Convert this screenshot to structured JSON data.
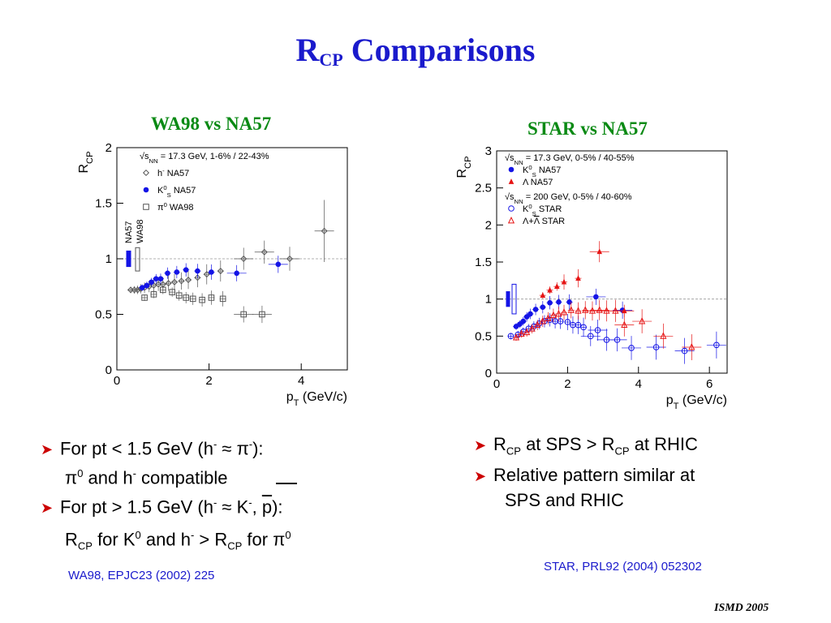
{
  "slide": {
    "title_main": "R",
    "title_sub": "CP",
    "title_rest": " Comparisons",
    "footer": "ISMD 2005"
  },
  "left_panel": {
    "title": "WA98 vs NA57",
    "reference": "WA98, EPJC23 (2002) 225"
  },
  "right_panel": {
    "title": "STAR vs NA57",
    "reference": "STAR, PRL92 (2004) 052302"
  },
  "bullets_left": {
    "b1": "For pt < 1.5 GeV (h",
    "b1_sup1": "-",
    "b1_approx": " ≈ π",
    "b1_sup2": "-",
    "b1_end": "):",
    "b1_line2_a": "π",
    "b1_line2_sup0": "0",
    "b1_line2_b": " and h",
    "b1_line2_sup1": "-",
    "b1_line2_c": " compatible",
    "b2": "For pt > 1.5 GeV (h",
    "b2_sup1": "-",
    "b2_approx": " ≈ K",
    "b2_sup2": "-",
    "b2_comma": ", ",
    "b2_pbar": "p",
    "b2_end": "):",
    "b2_line2_a": "R",
    "b2_line2_sub1": "CP",
    "b2_line2_b": " for K",
    "b2_line2_sup0": "0",
    "b2_line2_c": " and h",
    "b2_line2_sup1": "-",
    "b2_line2_d": " >  R",
    "b2_line2_sub2": "CP",
    "b2_line2_e": " for π",
    "b2_line2_sup2": "0"
  },
  "bullets_right": {
    "b1_a": "R",
    "b1_sub1": "CP",
    "b1_b": " at SPS >  R",
    "b1_sub2": "CP",
    "b1_c": " at RHIC",
    "b2_line1": "Relative pattern similar at",
    "b2_line2": "SPS and RHIC"
  },
  "colors": {
    "title": "#1a1acc",
    "panel_title": "#0a8a14",
    "arrow": "#cc0000",
    "blue": "#1414e6",
    "red": "#e61414",
    "grey": "#555555"
  },
  "chart_data": [
    {
      "type": "scatter",
      "ylabel": "R",
      "ylabel_sub": "CP",
      "xlabel": "p",
      "xlabel_sub": "T",
      "xlabel_unit": " (GeV/c)",
      "xlim": [
        0,
        5
      ],
      "ylim": [
        0,
        2
      ],
      "xticks": [
        0,
        2,
        4
      ],
      "yticks": [
        0,
        0.5,
        1,
        1.5,
        2
      ],
      "ytick_labels": [
        "0",
        "0.5",
        "1",
        "1.5",
        "2"
      ],
      "reference_line": 1,
      "legend_header": "√s",
      "legend_header_sub": "NN",
      "legend_header_rest": " = 17.3 GeV, 1-6% / 22-43%",
      "side_labels": [
        "NA57",
        "WA98"
      ],
      "systematic_bars": [
        {
          "label": "NA57",
          "low": 0.93,
          "high": 1.07,
          "color": "#1414e6",
          "filled": true
        },
        {
          "label": "WA98",
          "low": 0.89,
          "high": 1.1,
          "color": "#555555",
          "filled": false
        }
      ],
      "series": [
        {
          "name": "h",
          "name_sup": "-",
          "name_suffix": "  NA57",
          "marker": "open-diamond",
          "color": "#555555",
          "x": [
            0.3,
            0.38,
            0.45,
            0.52,
            0.6,
            0.7,
            0.8,
            0.9,
            1.0,
            1.12,
            1.25,
            1.4,
            1.55,
            1.75,
            1.95,
            2.25,
            2.75,
            3.2,
            3.75,
            4.5
          ],
          "y": [
            0.72,
            0.72,
            0.72,
            0.73,
            0.74,
            0.75,
            0.76,
            0.77,
            0.77,
            0.78,
            0.79,
            0.8,
            0.81,
            0.83,
            0.86,
            0.89,
            1.0,
            1.06,
            1.0,
            1.25
          ]
        },
        {
          "name": "K",
          "name_sup": "0",
          "name_sub": "S",
          "name_suffix": "  NA57",
          "marker": "filled-circle",
          "color": "#1414e6",
          "x": [
            0.55,
            0.65,
            0.75,
            0.85,
            0.95,
            1.1,
            1.3,
            1.5,
            1.75,
            2.05,
            2.6,
            3.5
          ],
          "y": [
            0.74,
            0.76,
            0.79,
            0.82,
            0.82,
            0.87,
            0.88,
            0.9,
            0.89,
            0.88,
            0.87,
            0.95
          ]
        },
        {
          "name": "π",
          "name_sup": "0",
          "name_suffix": "  WA98",
          "marker": "open-square",
          "color": "#555555",
          "x": [
            0.6,
            0.8,
            1.0,
            1.2,
            1.35,
            1.5,
            1.65,
            1.85,
            2.05,
            2.3,
            2.75,
            3.15
          ],
          "y": [
            0.65,
            0.68,
            0.72,
            0.7,
            0.67,
            0.65,
            0.64,
            0.63,
            0.65,
            0.64,
            0.5,
            0.5
          ]
        }
      ]
    },
    {
      "type": "scatter",
      "ylabel": "R",
      "ylabel_sub": "CP",
      "xlabel": "p",
      "xlabel_sub": "T",
      "xlabel_unit": " (GeV/c)",
      "xlim": [
        0,
        6.5
      ],
      "ylim": [
        0,
        3
      ],
      "xticks": [
        0,
        2,
        4,
        6
      ],
      "yticks": [
        0,
        0.5,
        1,
        1.5,
        2,
        2.5,
        3
      ],
      "ytick_labels": [
        "0",
        "0.5",
        "1",
        "1.5",
        "2",
        "2.5",
        "3"
      ],
      "reference_line": 1,
      "legend_header": "√s",
      "legend_header_sub": "NN",
      "legend_header_rest": " = 17.3 GeV, 0-5% / 40-55%",
      "legend_header2": "√s",
      "legend_header2_sub": "NN",
      "legend_header2_rest": " = 200 GeV, 0-5% / 40-60%",
      "systematic_bars": [
        {
          "label": "NA57",
          "low": 0.9,
          "high": 1.1,
          "color": "#1414e6",
          "filled": true
        },
        {
          "label": "STAR",
          "low": 0.8,
          "high": 1.2,
          "color": "#1414e6",
          "filled": false
        }
      ],
      "series": [
        {
          "name": "K",
          "name_sup": "0",
          "name_sub": "S",
          "name_suffix": "  NA57",
          "marker": "filled-circle",
          "color": "#1414e6",
          "x": [
            0.55,
            0.65,
            0.75,
            0.85,
            0.95,
            1.1,
            1.3,
            1.5,
            1.75,
            2.05,
            2.8,
            3.55
          ],
          "y": [
            0.63,
            0.66,
            0.7,
            0.76,
            0.8,
            0.86,
            0.89,
            0.95,
            0.96,
            0.96,
            1.03,
            0.85
          ]
        },
        {
          "name": "Λ",
          "name_suffix": "  NA57",
          "marker": "filled-triangle",
          "color": "#e61414",
          "x": [
            1.3,
            1.5,
            1.7,
            1.9,
            2.3,
            2.9,
            3.6
          ],
          "y": [
            1.05,
            1.12,
            1.17,
            1.23,
            1.28,
            1.64,
            0.84
          ]
        },
        {
          "name": "K",
          "name_sup": "0",
          "name_sub": "S",
          "name_suffix": "  STAR",
          "marker": "open-circle",
          "color": "#1414e6",
          "x": [
            0.4,
            0.6,
            0.75,
            0.9,
            1.05,
            1.2,
            1.35,
            1.5,
            1.65,
            1.8,
            2.0,
            2.15,
            2.3,
            2.45,
            2.65,
            2.85,
            3.1,
            3.4,
            3.8,
            4.5,
            5.3,
            6.2
          ],
          "y": [
            0.5,
            0.52,
            0.56,
            0.6,
            0.63,
            0.67,
            0.7,
            0.72,
            0.7,
            0.7,
            0.69,
            0.65,
            0.65,
            0.62,
            0.5,
            0.58,
            0.45,
            0.45,
            0.34,
            0.35,
            0.3,
            0.38
          ]
        },
        {
          "name": "Λ+",
          "name_bar": "Λ",
          "name_suffix": "  STAR",
          "marker": "open-triangle",
          "color": "#e61414",
          "x": [
            0.55,
            0.7,
            0.85,
            1.0,
            1.15,
            1.3,
            1.45,
            1.6,
            1.75,
            1.9,
            2.1,
            2.3,
            2.5,
            2.7,
            2.9,
            3.1,
            3.35,
            3.6,
            4.1,
            4.7,
            5.5
          ],
          "y": [
            0.48,
            0.53,
            0.55,
            0.6,
            0.65,
            0.7,
            0.74,
            0.78,
            0.8,
            0.82,
            0.85,
            0.84,
            0.85,
            0.84,
            0.85,
            0.84,
            0.84,
            0.65,
            0.7,
            0.5,
            0.35
          ]
        }
      ]
    }
  ]
}
